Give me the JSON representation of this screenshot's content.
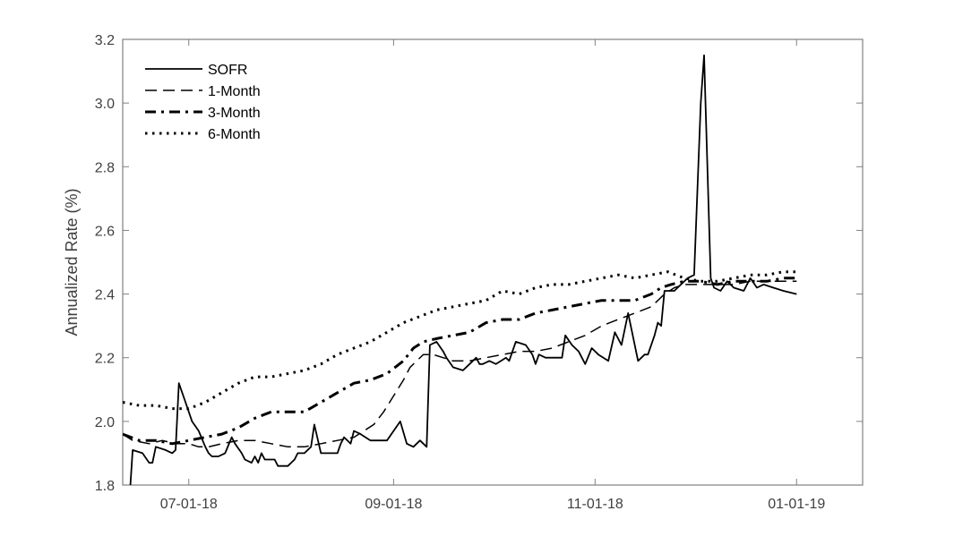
{
  "chart_data": {
    "type": "line",
    "title": "",
    "xlabel": "",
    "ylabel": "Annualized Rate (%)",
    "ylim": [
      1.8,
      3.2
    ],
    "yticks": [
      "1.8",
      "2.0",
      "2.2",
      "2.4",
      "2.6",
      "2.8",
      "3.0",
      "3.2"
    ],
    "xticks": [
      "07-01-18",
      "09-01-18",
      "11-01-18",
      "01-01-19"
    ],
    "x_unit": "days since 07-01-18",
    "xlim": [
      -20,
      204
    ],
    "grid": false,
    "legend_position": "upper left",
    "series": [
      {
        "name": "SOFR",
        "style": "solid",
        "points": [
          [
            -18,
            1.75
          ],
          [
            -17,
            1.91
          ],
          [
            -14,
            1.9
          ],
          [
            -12,
            1.87
          ],
          [
            -11,
            1.87
          ],
          [
            -10,
            1.92
          ],
          [
            -7,
            1.91
          ],
          [
            -5,
            1.9
          ],
          [
            -4,
            1.91
          ],
          [
            -3,
            2.12
          ],
          [
            -1,
            2.06
          ],
          [
            1,
            2.0
          ],
          [
            3,
            1.97
          ],
          [
            5,
            1.92
          ],
          [
            6,
            1.9
          ],
          [
            7,
            1.89
          ],
          [
            9,
            1.89
          ],
          [
            11,
            1.9
          ],
          [
            13,
            1.95
          ],
          [
            14,
            1.93
          ],
          [
            16,
            1.9
          ],
          [
            17,
            1.88
          ],
          [
            19,
            1.87
          ],
          [
            20,
            1.89
          ],
          [
            21,
            1.87
          ],
          [
            22,
            1.9
          ],
          [
            23,
            1.88
          ],
          [
            24,
            1.88
          ],
          [
            26,
            1.88
          ],
          [
            27,
            1.86
          ],
          [
            30,
            1.86
          ],
          [
            32,
            1.88
          ],
          [
            33,
            1.9
          ],
          [
            35,
            1.9
          ],
          [
            37,
            1.92
          ],
          [
            38,
            1.99
          ],
          [
            40,
            1.9
          ],
          [
            45,
            1.9
          ],
          [
            46,
            1.93
          ],
          [
            47,
            1.95
          ],
          [
            48,
            1.94
          ],
          [
            49,
            1.93
          ],
          [
            50,
            1.97
          ],
          [
            52,
            1.96
          ],
          [
            55,
            1.94
          ],
          [
            60,
            1.94
          ],
          [
            64,
            2.0
          ],
          [
            66,
            1.93
          ],
          [
            68,
            1.92
          ],
          [
            70,
            1.94
          ],
          [
            71,
            1.93
          ],
          [
            72,
            1.92
          ],
          [
            73,
            2.24
          ],
          [
            75,
            2.25
          ],
          [
            77,
            2.22
          ],
          [
            78,
            2.2
          ],
          [
            80,
            2.17
          ],
          [
            83,
            2.16
          ],
          [
            85,
            2.18
          ],
          [
            87,
            2.2
          ],
          [
            88,
            2.18
          ],
          [
            89,
            2.18
          ],
          [
            91,
            2.19
          ],
          [
            93,
            2.18
          ],
          [
            96,
            2.2
          ],
          [
            97,
            2.19
          ],
          [
            99,
            2.25
          ],
          [
            102,
            2.24
          ],
          [
            104,
            2.21
          ],
          [
            105,
            2.18
          ],
          [
            106,
            2.21
          ],
          [
            108,
            2.2
          ],
          [
            113,
            2.2
          ],
          [
            114,
            2.27
          ],
          [
            116,
            2.24
          ],
          [
            118,
            2.22
          ],
          [
            120,
            2.18
          ],
          [
            122,
            2.23
          ],
          [
            124,
            2.21
          ],
          [
            127,
            2.19
          ],
          [
            129,
            2.28
          ],
          [
            131,
            2.24
          ],
          [
            133,
            2.34
          ],
          [
            136,
            2.19
          ],
          [
            138,
            2.21
          ],
          [
            139,
            2.21
          ],
          [
            141,
            2.27
          ],
          [
            142,
            2.31
          ],
          [
            143,
            2.3
          ],
          [
            144,
            2.41
          ],
          [
            147,
            2.41
          ],
          [
            149,
            2.43
          ],
          [
            151,
            2.45
          ],
          [
            153,
            2.46
          ],
          [
            155,
            3.0
          ],
          [
            156,
            3.15
          ],
          [
            158,
            2.45
          ],
          [
            159,
            2.42
          ],
          [
            161,
            2.41
          ],
          [
            163,
            2.44
          ],
          [
            165,
            2.42
          ],
          [
            168,
            2.41
          ],
          [
            170,
            2.45
          ],
          [
            172,
            2.42
          ],
          [
            174,
            2.43
          ],
          [
            177,
            2.42
          ],
          [
            180,
            2.41
          ],
          [
            184,
            2.4
          ]
        ]
      },
      {
        "name": "1-Month",
        "style": "dashed",
        "points": [
          [
            -20,
            1.96
          ],
          [
            -17,
            1.94
          ],
          [
            -12,
            1.93
          ],
          [
            -8,
            1.94
          ],
          [
            -4,
            1.93
          ],
          [
            0,
            1.93
          ],
          [
            3,
            1.92
          ],
          [
            6,
            1.92
          ],
          [
            10,
            1.93
          ],
          [
            15,
            1.94
          ],
          [
            20,
            1.94
          ],
          [
            25,
            1.93
          ],
          [
            30,
            1.92
          ],
          [
            35,
            1.92
          ],
          [
            40,
            1.93
          ],
          [
            45,
            1.94
          ],
          [
            50,
            1.95
          ],
          [
            53,
            1.97
          ],
          [
            56,
            1.99
          ],
          [
            59,
            2.03
          ],
          [
            62,
            2.08
          ],
          [
            65,
            2.13
          ],
          [
            67,
            2.17
          ],
          [
            69,
            2.19
          ],
          [
            71,
            2.21
          ],
          [
            74,
            2.21
          ],
          [
            77,
            2.2
          ],
          [
            80,
            2.19
          ],
          [
            85,
            2.19
          ],
          [
            90,
            2.2
          ],
          [
            95,
            2.21
          ],
          [
            100,
            2.22
          ],
          [
            105,
            2.22
          ],
          [
            110,
            2.23
          ],
          [
            115,
            2.25
          ],
          [
            120,
            2.27
          ],
          [
            125,
            2.3
          ],
          [
            130,
            2.32
          ],
          [
            135,
            2.34
          ],
          [
            140,
            2.36
          ],
          [
            144,
            2.4
          ],
          [
            147,
            2.42
          ],
          [
            150,
            2.43
          ],
          [
            155,
            2.43
          ],
          [
            160,
            2.43
          ],
          [
            165,
            2.43
          ],
          [
            170,
            2.44
          ],
          [
            175,
            2.44
          ],
          [
            180,
            2.44
          ],
          [
            184,
            2.44
          ]
        ]
      },
      {
        "name": "3-Month",
        "style": "dashdot",
        "points": [
          [
            -20,
            1.96
          ],
          [
            -15,
            1.94
          ],
          [
            -10,
            1.94
          ],
          [
            -5,
            1.93
          ],
          [
            0,
            1.94
          ],
          [
            5,
            1.95
          ],
          [
            10,
            1.96
          ],
          [
            15,
            1.98
          ],
          [
            20,
            2.01
          ],
          [
            25,
            2.03
          ],
          [
            30,
            2.03
          ],
          [
            35,
            2.03
          ],
          [
            40,
            2.06
          ],
          [
            45,
            2.09
          ],
          [
            50,
            2.12
          ],
          [
            55,
            2.13
          ],
          [
            60,
            2.15
          ],
          [
            65,
            2.19
          ],
          [
            68,
            2.23
          ],
          [
            71,
            2.25
          ],
          [
            75,
            2.26
          ],
          [
            80,
            2.27
          ],
          [
            85,
            2.28
          ],
          [
            90,
            2.31
          ],
          [
            95,
            2.32
          ],
          [
            100,
            2.32
          ],
          [
            105,
            2.34
          ],
          [
            110,
            2.35
          ],
          [
            115,
            2.36
          ],
          [
            120,
            2.37
          ],
          [
            125,
            2.38
          ],
          [
            130,
            2.38
          ],
          [
            135,
            2.38
          ],
          [
            140,
            2.4
          ],
          [
            143,
            2.42
          ],
          [
            146,
            2.43
          ],
          [
            150,
            2.44
          ],
          [
            155,
            2.44
          ],
          [
            160,
            2.43
          ],
          [
            165,
            2.44
          ],
          [
            170,
            2.44
          ],
          [
            175,
            2.44
          ],
          [
            180,
            2.45
          ],
          [
            184,
            2.45
          ]
        ]
      },
      {
        "name": "6-Month",
        "style": "dotted",
        "points": [
          [
            -20,
            2.06
          ],
          [
            -15,
            2.05
          ],
          [
            -10,
            2.05
          ],
          [
            -5,
            2.04
          ],
          [
            0,
            2.04
          ],
          [
            5,
            2.06
          ],
          [
            10,
            2.09
          ],
          [
            15,
            2.12
          ],
          [
            20,
            2.14
          ],
          [
            25,
            2.14
          ],
          [
            30,
            2.15
          ],
          [
            35,
            2.16
          ],
          [
            40,
            2.18
          ],
          [
            45,
            2.21
          ],
          [
            50,
            2.23
          ],
          [
            55,
            2.25
          ],
          [
            60,
            2.28
          ],
          [
            65,
            2.31
          ],
          [
            70,
            2.33
          ],
          [
            75,
            2.35
          ],
          [
            80,
            2.36
          ],
          [
            85,
            2.37
          ],
          [
            90,
            2.38
          ],
          [
            95,
            2.41
          ],
          [
            100,
            2.4
          ],
          [
            105,
            2.42
          ],
          [
            110,
            2.43
          ],
          [
            115,
            2.43
          ],
          [
            120,
            2.44
          ],
          [
            125,
            2.45
          ],
          [
            130,
            2.46
          ],
          [
            135,
            2.45
          ],
          [
            140,
            2.46
          ],
          [
            145,
            2.47
          ],
          [
            150,
            2.45
          ],
          [
            155,
            2.44
          ],
          [
            160,
            2.44
          ],
          [
            165,
            2.45
          ],
          [
            170,
            2.46
          ],
          [
            175,
            2.46
          ],
          [
            180,
            2.47
          ],
          [
            184,
            2.47
          ]
        ]
      }
    ]
  },
  "legend": {
    "items": [
      {
        "label": "SOFR",
        "style": "solid"
      },
      {
        "label": "1-Month",
        "style": "dashed"
      },
      {
        "label": "3-Month",
        "style": "dashdot"
      },
      {
        "label": "6-Month",
        "style": "dotted"
      }
    ]
  },
  "colors": {
    "axis": "#808080",
    "tick_text": "#404040",
    "line": "#000000",
    "background": "#ffffff"
  }
}
